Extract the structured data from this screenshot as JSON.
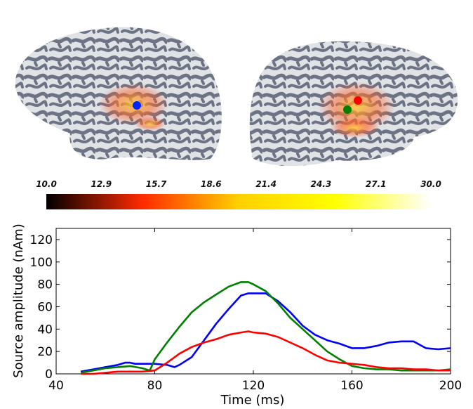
{
  "colorbar": {
    "ticks": [
      "10.0",
      "12.9",
      "15.7",
      "18.6",
      "21.4",
      "24.3",
      "27.1",
      "30.0"
    ],
    "colors": [
      "#000000",
      "#ff2a00",
      "#ffd000",
      "#ffff00",
      "#ffffff"
    ]
  },
  "brain": {
    "surface_light": "#dfe3e6",
    "surface_dark": "#5f6679",
    "markers": [
      {
        "name": "blue-marker",
        "color": "#0022ff"
      },
      {
        "name": "red-marker",
        "color": "#ff0000"
      },
      {
        "name": "green-marker",
        "color": "#008000"
      }
    ]
  },
  "chart_data": {
    "type": "line",
    "xlabel": "Time (ms)",
    "ylabel": "Source amplitude (nAm)",
    "xlim": [
      40,
      200
    ],
    "ylim": [
      0,
      130
    ],
    "xticks": [
      40,
      80,
      120,
      160,
      200
    ],
    "yticks": [
      0,
      20,
      40,
      60,
      80,
      100,
      120
    ],
    "grid": false,
    "series": [
      {
        "color": "#0000ff",
        "x": [
          50,
          55,
          60,
          65,
          68,
          70,
          72,
          75,
          78,
          80,
          85,
          88,
          90,
          95,
          100,
          105,
          110,
          115,
          118,
          120,
          125,
          130,
          135,
          140,
          145,
          150,
          155,
          160,
          165,
          170,
          175,
          180,
          185,
          190,
          195,
          200
        ],
        "y": [
          2,
          4,
          6,
          8,
          10,
          10,
          9,
          9,
          9,
          9,
          8,
          6,
          8,
          15,
          30,
          45,
          58,
          70,
          72,
          72,
          72,
          65,
          55,
          43,
          35,
          30,
          27,
          23,
          23,
          25,
          28,
          29,
          29,
          23,
          22,
          23
        ]
      },
      {
        "color": "#008000",
        "x": [
          50,
          55,
          60,
          65,
          70,
          75,
          78,
          80,
          85,
          90,
          95,
          100,
          105,
          110,
          115,
          118,
          120,
          125,
          130,
          135,
          140,
          145,
          150,
          155,
          160,
          165,
          170,
          175,
          180,
          185,
          190,
          195,
          200
        ],
        "y": [
          1,
          3,
          5,
          6,
          7,
          5,
          3,
          13,
          28,
          42,
          55,
          64,
          71,
          78,
          82,
          82,
          80,
          74,
          63,
          50,
          40,
          30,
          20,
          13,
          7,
          5,
          4,
          4,
          3,
          3,
          3,
          3,
          4
        ]
      },
      {
        "color": "#ff0000",
        "x": [
          50,
          55,
          60,
          65,
          70,
          75,
          80,
          85,
          90,
          95,
          100,
          105,
          110,
          115,
          118,
          120,
          125,
          130,
          135,
          140,
          145,
          150,
          155,
          160,
          165,
          170,
          175,
          180,
          185,
          190,
          195,
          200
        ],
        "y": [
          0,
          0,
          1,
          2,
          2,
          2,
          3,
          10,
          18,
          24,
          28,
          31,
          35,
          37,
          38,
          37,
          36,
          33,
          28,
          23,
          17,
          12,
          10,
          9,
          8,
          6,
          5,
          5,
          4,
          4,
          3,
          3
        ]
      }
    ]
  }
}
